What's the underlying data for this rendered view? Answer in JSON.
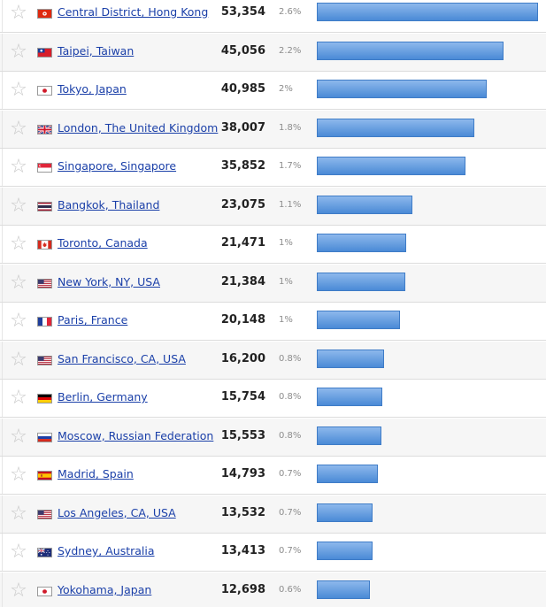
{
  "colors": {
    "link": "#1a3fa8",
    "bar_top": "#8db8ec",
    "bar_bottom": "#4a8ad6",
    "star": "#c8c8c8"
  },
  "rows": [
    {
      "city": "Central District, Hong Kong",
      "count": "53,354",
      "pct": "2.6%",
      "share": 1.0,
      "flag": "hong-kong-flag-icon"
    },
    {
      "city": "Taipei, Taiwan",
      "count": "45,056",
      "pct": "2.2%",
      "share": 0.8445,
      "flag": "taiwan-flag-icon"
    },
    {
      "city": "Tokyo, Japan",
      "count": "40,985",
      "pct": "2%",
      "share": 0.7682,
      "flag": "japan-flag-icon"
    },
    {
      "city": "London, The United Kingdom",
      "count": "38,007",
      "pct": "1.8%",
      "share": 0.7124,
      "flag": "uk-flag-icon"
    },
    {
      "city": "Singapore, Singapore",
      "count": "35,852",
      "pct": "1.7%",
      "share": 0.672,
      "flag": "singapore-flag-icon"
    },
    {
      "city": "Bangkok, Thailand",
      "count": "23,075",
      "pct": "1.1%",
      "share": 0.4325,
      "flag": "thailand-flag-icon"
    },
    {
      "city": "Toronto, Canada",
      "count": "21,471",
      "pct": "1%",
      "share": 0.4024,
      "flag": "canada-flag-icon"
    },
    {
      "city": "New York, NY, USA",
      "count": "21,384",
      "pct": "1%",
      "share": 0.4008,
      "flag": "usa-flag-icon"
    },
    {
      "city": "Paris, France",
      "count": "20,148",
      "pct": "1%",
      "share": 0.3776,
      "flag": "france-flag-icon"
    },
    {
      "city": "San Francisco, CA, USA",
      "count": "16,200",
      "pct": "0.8%",
      "share": 0.3036,
      "flag": "usa-flag-icon"
    },
    {
      "city": "Berlin, Germany",
      "count": "15,754",
      "pct": "0.8%",
      "share": 0.2953,
      "flag": "germany-flag-icon"
    },
    {
      "city": "Moscow, Russian Federation",
      "count": "15,553",
      "pct": "0.8%",
      "share": 0.2915,
      "flag": "russia-flag-icon"
    },
    {
      "city": "Madrid, Spain",
      "count": "14,793",
      "pct": "0.7%",
      "share": 0.2773,
      "flag": "spain-flag-icon"
    },
    {
      "city": "Los Angeles, CA, USA",
      "count": "13,532",
      "pct": "0.7%",
      "share": 0.2536,
      "flag": "usa-flag-icon"
    },
    {
      "city": "Sydney, Australia",
      "count": "13,413",
      "pct": "0.7%",
      "share": 0.2514,
      "flag": "australia-flag-icon"
    },
    {
      "city": "Yokohama, Japan",
      "count": "12,698",
      "pct": "0.6%",
      "share": 0.238,
      "flag": "japan-flag-icon"
    }
  ]
}
